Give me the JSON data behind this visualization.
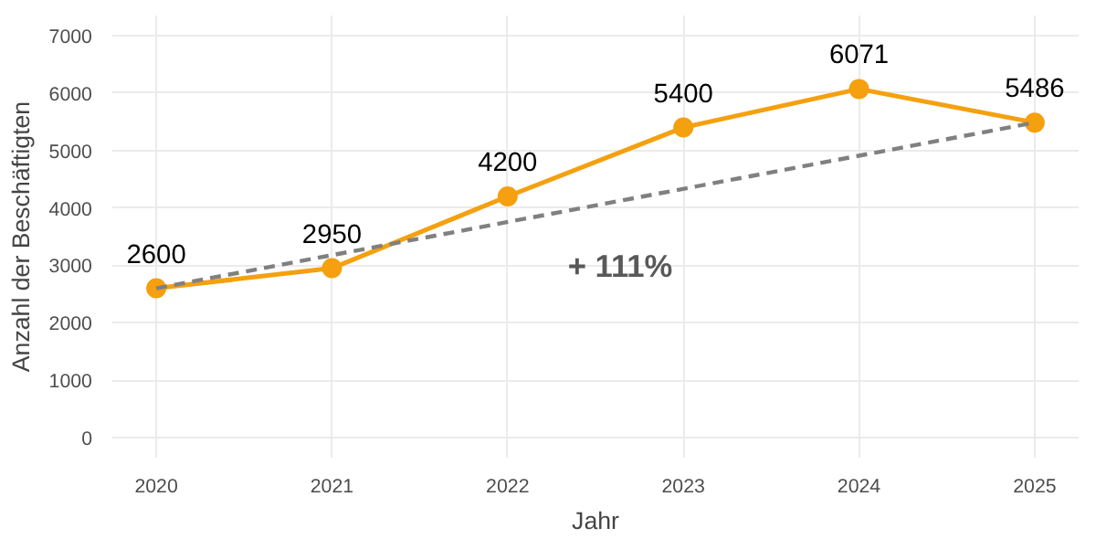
{
  "chart_data": {
    "type": "line",
    "xlabel": "Jahr",
    "ylabel": "Anzahl der Beschäftigten",
    "x": [
      2020,
      2021,
      2022,
      2023,
      2024,
      2025
    ],
    "series": [
      {
        "color": "#f5a00f",
        "values": [
          2600,
          2950,
          4200,
          5400,
          6071,
          5486
        ],
        "value_labels": [
          "2600",
          "2950",
          "4200",
          "5400",
          "6071",
          "5486"
        ],
        "marker": "circle",
        "line_style": "solid"
      },
      {
        "type": "line",
        "color": "#808080",
        "x": [
          2020,
          2025
        ],
        "values": [
          2600,
          5486
        ],
        "marker": "none",
        "line_style": "dashed"
      }
    ],
    "annotations": [
      "+ 111%"
    ],
    "xlim": [
      2019.75,
      2025.25
    ],
    "xticks": [
      2020,
      2021,
      2022,
      2023,
      2024,
      2025
    ],
    "ylim": [
      -350,
      7350
    ],
    "yticks": [
      0,
      1000,
      2000,
      3000,
      4000,
      5000,
      6000,
      7000
    ],
    "grid": true
  }
}
